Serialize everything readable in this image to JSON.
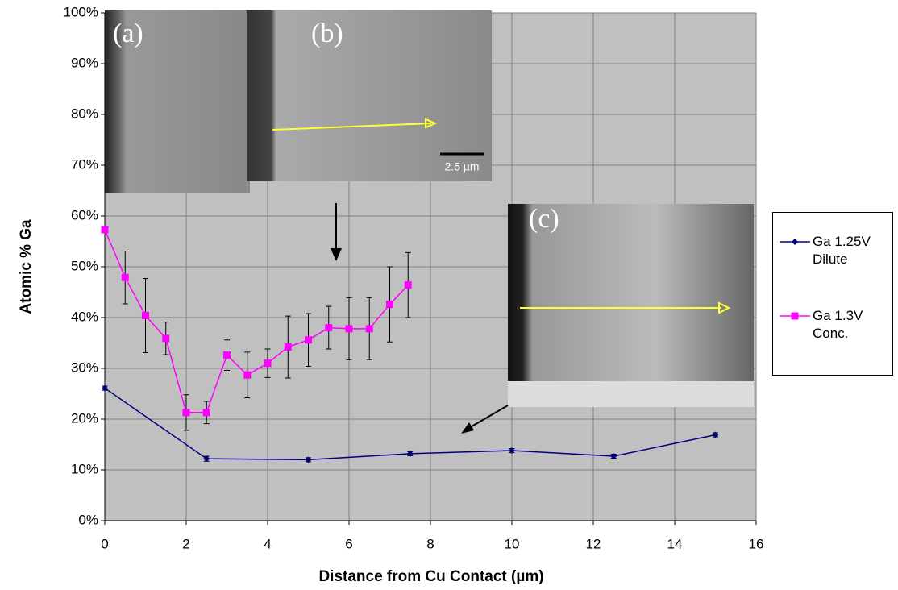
{
  "chart_data": {
    "type": "line",
    "xlabel": "Distance from Cu Contact (µm)",
    "ylabel": "Atomic % Ga",
    "xlim": [
      0,
      16
    ],
    "xticks": [
      0,
      2,
      4,
      6,
      8,
      10,
      12,
      14,
      16
    ],
    "ylim": [
      0,
      100
    ],
    "yticks": [
      {
        "value": 0,
        "label": "0%"
      },
      {
        "value": 10,
        "label": "10%"
      },
      {
        "value": 20,
        "label": "20%"
      },
      {
        "value": 30,
        "label": "30%"
      },
      {
        "value": 40,
        "label": "40%"
      },
      {
        "value": 50,
        "label": "50%"
      },
      {
        "value": 60,
        "label": "60%"
      },
      {
        "value": 70,
        "label": "70%"
      },
      {
        "value": 80,
        "label": "80%"
      },
      {
        "value": 90,
        "label": "90%"
      },
      {
        "value": 100,
        "label": "100%"
      }
    ],
    "grid": true,
    "legend": "right",
    "series": [
      {
        "name": "Ga 1.25V Dilute",
        "color": "#000080",
        "marker": "diamond",
        "x": [
          0,
          2.5,
          5,
          7.5,
          10,
          12.5,
          15
        ],
        "values": [
          26.1,
          12.2,
          12.0,
          13.2,
          13.8,
          12.7,
          16.9
        ],
        "errors": [
          0.4,
          0.5,
          0.4,
          0.4,
          0.4,
          0.4,
          0.4
        ]
      },
      {
        "name": "Ga 1.3V Conc.",
        "color": "#ff00ff",
        "marker": "square",
        "x": [
          0,
          0.5,
          1,
          1.5,
          2,
          2.5,
          3,
          3.5,
          4,
          4.5,
          5,
          5.5,
          6,
          6.5,
          7,
          7.45
        ],
        "values": [
          57.3,
          47.9,
          40.4,
          35.9,
          21.3,
          21.3,
          32.6,
          28.7,
          31.0,
          34.2,
          35.6,
          38.0,
          37.8,
          37.8,
          42.6,
          46.4
        ],
        "errors": [
          0,
          5.2,
          7.3,
          3.2,
          3.5,
          2.2,
          3.0,
          4.5,
          2.8,
          6.1,
          5.2,
          4.2,
          6.1,
          6.1,
          7.4,
          6.4
        ]
      }
    ],
    "annotations": [
      "(a)",
      "(b)",
      "(c)",
      "2.5 µm"
    ]
  }
}
